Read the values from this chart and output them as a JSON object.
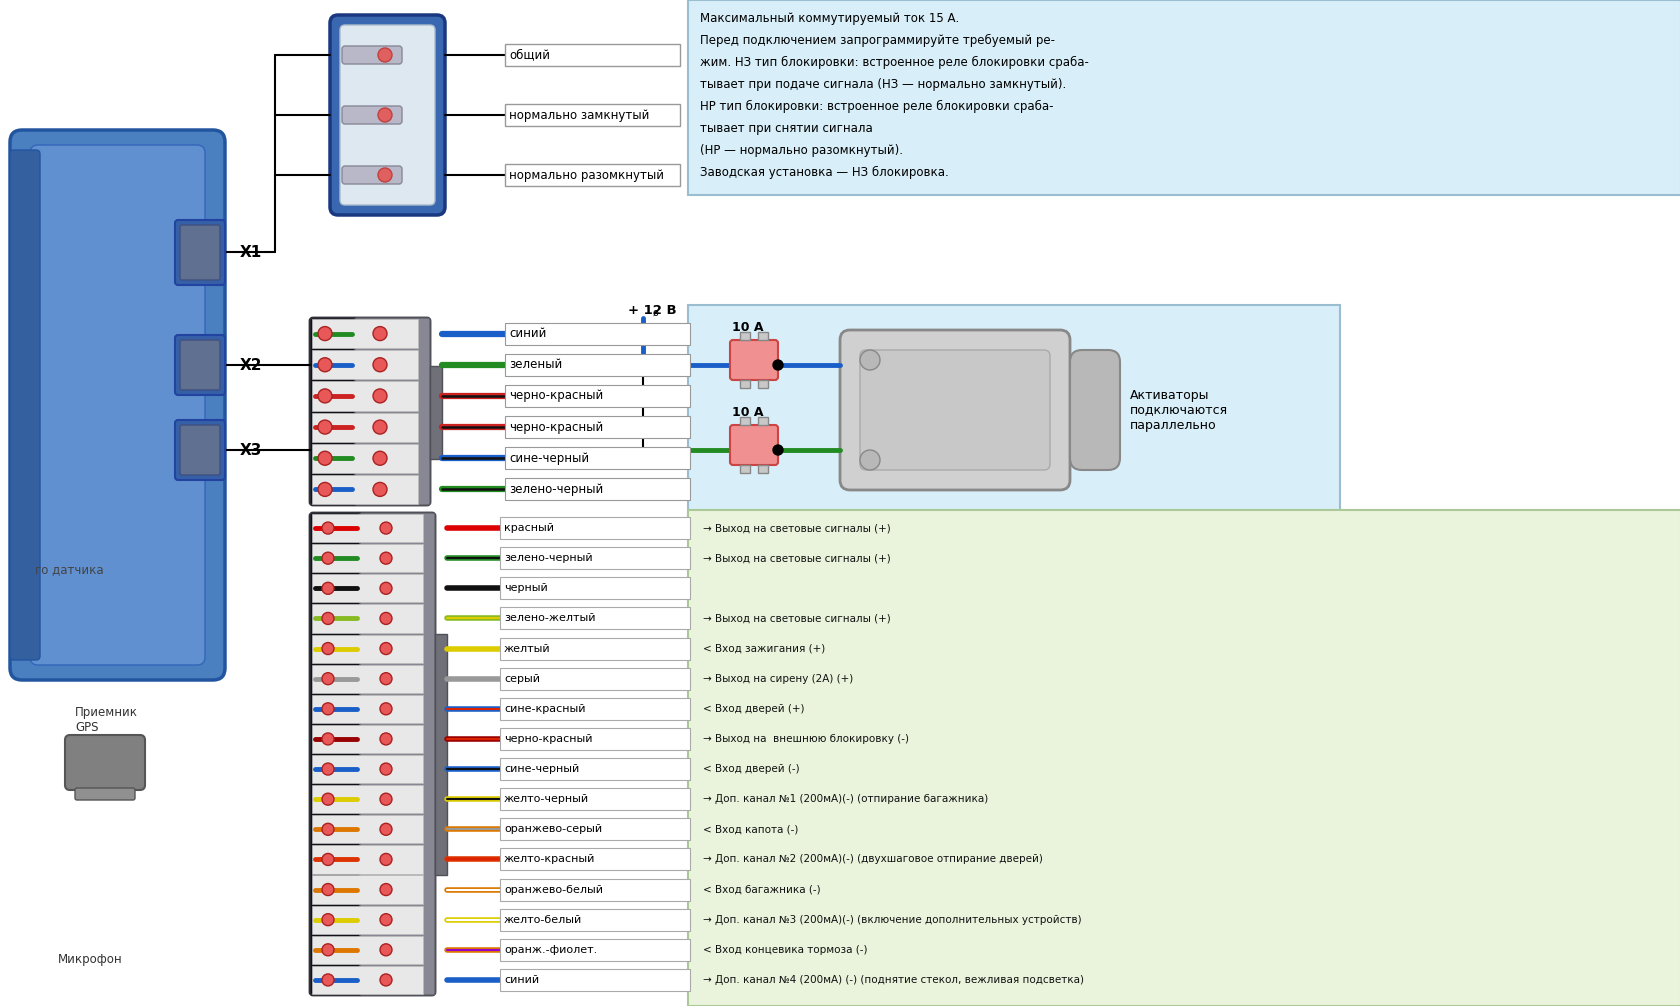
{
  "bg_color": "#ffffff",
  "info_box_color": "#d8eef8",
  "x2_area_color": "#d8eef8",
  "x3_area_color": "#eaf4dc",
  "info_text_lines": [
    "Максимальный коммутируемый ток 15 А.",
    "Перед подключением запрограммируйте требуемый ре-",
    "жим. НЗ тип блокировки: встроенное реле блокировки сраба-",
    "тывает при подаче сигнала (НЗ — нормально замкнутый).",
    "НР тип блокировки: встроенное реле блокировки сраба-",
    "тывает при снятии сигнала",
    "(НР — нормально разомкнутый).",
    "Заводская установка — НЗ блокировка."
  ],
  "relay_labels": [
    "общий",
    "нормально замкнутый",
    "нормально разомкнутый"
  ],
  "x2_labels": [
    "синий",
    "зеленый",
    "черно-красный",
    "черно-красный",
    "сине-черный",
    "зелено-черный"
  ],
  "x2_wire_colors": [
    "#1a5fc8",
    "#228B22",
    "#cc2222",
    "#cc2222",
    "#1a5fc8",
    "#228B22"
  ],
  "x2_wire_stripe": [
    null,
    null,
    "#111111",
    "#111111",
    "#111111",
    "#111111"
  ],
  "x3_labels": [
    "красный",
    "зелено-черный",
    "черный",
    "зелено-желтый",
    "желтый",
    "серый",
    "сине-красный",
    "черно-красный",
    "сине-черный",
    "желто-черный",
    "оранжево-серый",
    "желто-красный",
    "оранжево-белый",
    "желто-белый",
    "оранж.-фиолет.",
    "синий"
  ],
  "x3_wire_colors": [
    "#dd0000",
    "#228B22",
    "#111111",
    "#88bb22",
    "#ddcc00",
    "#999999",
    "#1a5fc8",
    "#990000",
    "#1a5fc8",
    "#ddcc00",
    "#dd7700",
    "#dd3300",
    "#dd7700",
    "#ddcc00",
    "#dd7700",
    "#1a5fc8"
  ],
  "x3_wire_stripe": [
    null,
    "#111111",
    null,
    "#ddcc00",
    null,
    null,
    "#dd2200",
    "#dd2200",
    "#111111",
    "#111111",
    "#999999",
    "#dd2200",
    "#ffffff",
    "#ffffff",
    "#9900cc",
    null
  ],
  "x3_descriptions": [
    "→ Выход на световые сигналы (+)",
    "→ Выход на световые сигналы (+)",
    "",
    "→ Выход на световые сигналы (+)",
    "< Вход зажигания (+)",
    "→ Выход на сирену (2А) (+)",
    "< Вход дверей (+)",
    "→ Выход на  внешнюю блокировку (-)",
    "< Вход дверей (-)",
    "→ Доп. канал №1 (200мА)(-) (отпирание багажника)",
    "< Вход капота (-)",
    "→ Доп. канал №2 (200мА)(-) (двухшаговое отпирание дверей)",
    "< Вход багажника (-)",
    "→ Доп. канал №3 (200мА)(-) (включение дополнительных устройств)",
    "< Вход концевика тормоза (-)",
    "→ Доп. канал №4 (200мА) (-) (поднятие стекол, вежливая подсветка)"
  ],
  "plus12v_label": "+ 12 В",
  "fuse_label": "10 А",
  "activator_label": "Активаторы\nподключаются\nпараллельно",
  "gps_label": "Приемник\nGPS",
  "mic_label": "Микрофон",
  "sensor_label": "го датчика",
  "x1_label": "X1",
  "x2_label": "X2",
  "x3_label": "X3"
}
